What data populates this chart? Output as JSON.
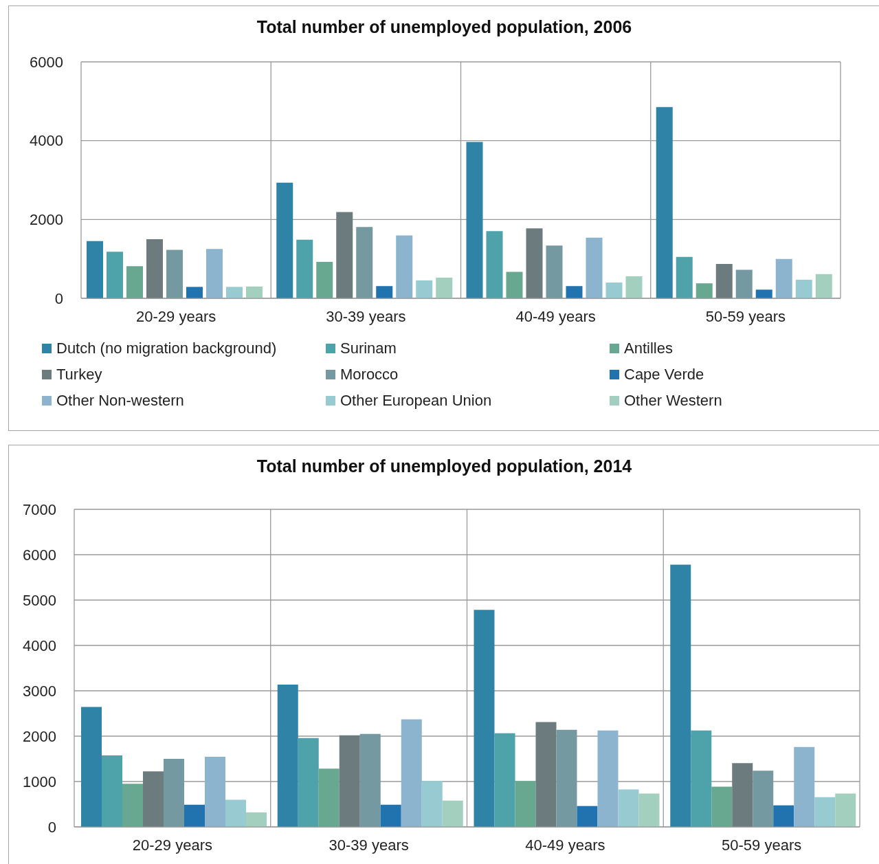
{
  "chart_data": [
    {
      "type": "bar",
      "title": "Total number of unemployed population, 2006",
      "categories": [
        "20-29 years",
        "30-39 years",
        "40-49 years",
        "50-59 years"
      ],
      "series": [
        {
          "name": "Dutch (no migration background)",
          "color": "#2e83a6",
          "values": [
            1450,
            2935,
            3970,
            4855
          ]
        },
        {
          "name": "Surinam",
          "color": "#4ea3aa",
          "values": [
            1180,
            1485,
            1705,
            1050
          ]
        },
        {
          "name": "Antilles",
          "color": "#68a890",
          "values": [
            815,
            925,
            670,
            380
          ]
        },
        {
          "name": "Turkey",
          "color": "#6c7b7d",
          "values": [
            1500,
            2190,
            1775,
            870
          ]
        },
        {
          "name": "Morocco",
          "color": "#7499a1",
          "values": [
            1230,
            1810,
            1340,
            725
          ]
        },
        {
          "name": "Cape Verde",
          "color": "#2173b0",
          "values": [
            290,
            310,
            310,
            220
          ]
        },
        {
          "name": "Other Non-western",
          "color": "#8db4cf",
          "values": [
            1250,
            1595,
            1540,
            1000
          ]
        },
        {
          "name": "Other European Union",
          "color": "#98cbd1",
          "values": [
            290,
            455,
            400,
            470
          ]
        },
        {
          "name": "Other Western",
          "color": "#a3cfbe",
          "values": [
            300,
            525,
            560,
            615
          ]
        }
      ],
      "ylim": [
        0,
        6000
      ],
      "yticks": [
        0,
        2000,
        4000,
        6000
      ],
      "grid": true,
      "legend": "bottom"
    },
    {
      "type": "bar",
      "title": "Total number of unemployed population, 2014",
      "categories": [
        "20-29 years",
        "30-39 years",
        "40-49 years",
        "50-59 years"
      ],
      "series": [
        {
          "color": "#2e83a6",
          "values": [
            2645,
            3135,
            4785,
            5780
          ]
        },
        {
          "color": "#4ea3aa",
          "values": [
            1575,
            1960,
            2065,
            2125
          ]
        },
        {
          "color": "#68a890",
          "values": [
            950,
            1285,
            1010,
            885
          ]
        },
        {
          "color": "#6c7b7d",
          "values": [
            1225,
            2020,
            2310,
            1405
          ]
        },
        {
          "color": "#7499a1",
          "values": [
            1500,
            2050,
            2140,
            1240
          ]
        },
        {
          "color": "#2173b0",
          "values": [
            490,
            490,
            460,
            475
          ]
        },
        {
          "color": "#8db4cf",
          "values": [
            1545,
            2370,
            2125,
            1760
          ]
        },
        {
          "color": "#98cbd1",
          "values": [
            600,
            1010,
            825,
            655
          ]
        },
        {
          "color": "#a3cfbe",
          "values": [
            320,
            580,
            735,
            735
          ]
        }
      ],
      "ylim": [
        0,
        7000
      ],
      "yticks": [
        0,
        1000,
        2000,
        3000,
        4000,
        5000,
        6000,
        7000
      ],
      "grid": true
    }
  ]
}
